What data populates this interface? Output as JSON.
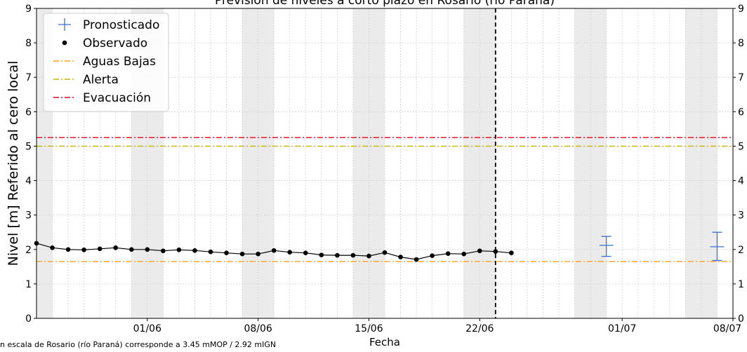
{
  "chart_data": {
    "type": "line",
    "title": "Previsión de niveles a corto plazo en Rosario (río Paraná)",
    "xlabel": "Fecha",
    "ylabel": "Nivel [m] Referido al cero local",
    "ylim": [
      0,
      9
    ],
    "yticks": [
      "0",
      "1",
      "2",
      "3",
      "4",
      "5",
      "6",
      "7",
      "8",
      "9"
    ],
    "xlim": [
      "2025-05-25",
      "2025-07-08"
    ],
    "xticks": [
      {
        "date": "2025-06-01",
        "label": "01/06"
      },
      {
        "date": "2025-06-08",
        "label": "08/06"
      },
      {
        "date": "2025-06-15",
        "label": "15/06"
      },
      {
        "date": "2025-06-22",
        "label": "22/06"
      },
      {
        "date": "2025-07-01",
        "label": "01/07"
      },
      {
        "date": "2025-07-08",
        "label": "08/07"
      }
    ],
    "grid": true,
    "legend_position": "top-left",
    "current_date": "2025-06-23",
    "observed": {
      "name": "Observado",
      "color": "#000000",
      "points": [
        {
          "x": "2025-05-25",
          "y": 2.18
        },
        {
          "x": "2025-05-26",
          "y": 2.05
        },
        {
          "x": "2025-05-27",
          "y": 2.0
        },
        {
          "x": "2025-05-28",
          "y": 1.99
        },
        {
          "x": "2025-05-29",
          "y": 2.02
        },
        {
          "x": "2025-05-30",
          "y": 2.05
        },
        {
          "x": "2025-05-31",
          "y": 2.0
        },
        {
          "x": "2025-06-01",
          "y": 2.0
        },
        {
          "x": "2025-06-02",
          "y": 1.96
        },
        {
          "x": "2025-06-03",
          "y": 1.99
        },
        {
          "x": "2025-06-04",
          "y": 1.97
        },
        {
          "x": "2025-06-05",
          "y": 1.93
        },
        {
          "x": "2025-06-06",
          "y": 1.9
        },
        {
          "x": "2025-06-07",
          "y": 1.87
        },
        {
          "x": "2025-06-08",
          "y": 1.87
        },
        {
          "x": "2025-06-09",
          "y": 1.97
        },
        {
          "x": "2025-06-10",
          "y": 1.92
        },
        {
          "x": "2025-06-11",
          "y": 1.9
        },
        {
          "x": "2025-06-12",
          "y": 1.84
        },
        {
          "x": "2025-06-13",
          "y": 1.83
        },
        {
          "x": "2025-06-14",
          "y": 1.83
        },
        {
          "x": "2025-06-15",
          "y": 1.81
        },
        {
          "x": "2025-06-16",
          "y": 1.91
        },
        {
          "x": "2025-06-17",
          "y": 1.78
        },
        {
          "x": "2025-06-18",
          "y": 1.71
        },
        {
          "x": "2025-06-19",
          "y": 1.82
        },
        {
          "x": "2025-06-20",
          "y": 1.88
        },
        {
          "x": "2025-06-21",
          "y": 1.87
        },
        {
          "x": "2025-06-22",
          "y": 1.96
        },
        {
          "x": "2025-06-23",
          "y": 1.94
        },
        {
          "x": "2025-06-24",
          "y": 1.9
        }
      ]
    },
    "forecast": {
      "name": "Pronosticado",
      "color": "#3c6fd6",
      "points": [
        {
          "x": "2025-06-30",
          "y": 2.12,
          "low": 1.8,
          "high": 2.38
        },
        {
          "x": "2025-07-07",
          "y": 2.08,
          "low": 1.68,
          "high": 2.5
        }
      ]
    },
    "thresholds": [
      {
        "name": "Aguas Bajas",
        "value": 1.65,
        "color": "#ff9f1c"
      },
      {
        "name": "Alerta",
        "value": 5.0,
        "color": "#c8b400"
      },
      {
        "name": "Evacuación",
        "value": 5.25,
        "color": "#e8001c"
      }
    ],
    "legend": [
      "Pronosticado",
      "Observado",
      "Aguas Bajas",
      "Alerta",
      "Evacuación"
    ]
  },
  "footnote": "n escala de Rosario (río Paraná) corresponde a 3.45 mMOP / 2.92 mIGN"
}
